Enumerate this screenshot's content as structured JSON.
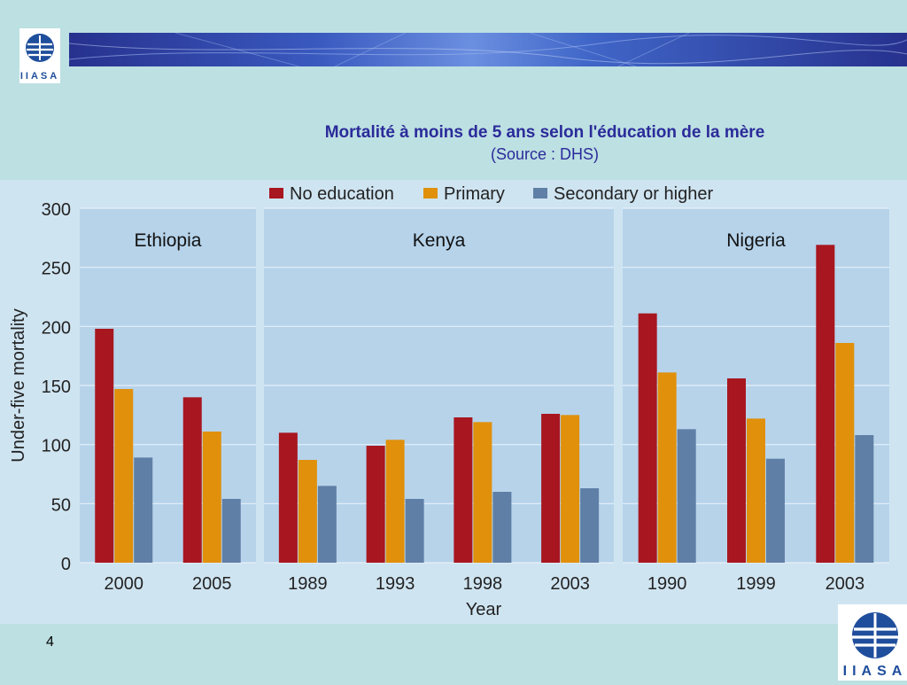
{
  "title": "Mortalité à moins de 5 ans selon l'éducation de la mère",
  "subtitle": "(Source : DHS)",
  "page_number": "4",
  "logo_text": "IIASA",
  "colors": {
    "background": "#bde0e2",
    "banner": "#27318e",
    "title": "#2b2b9a",
    "panel": "#b6d3ea",
    "chart_background": "#cfe4f1"
  },
  "chart_data": {
    "type": "bar",
    "ylabel": "Under-five mortality",
    "xlabel": "Year",
    "ylim": [
      0,
      300
    ],
    "yticks": [
      0,
      50,
      100,
      150,
      200,
      250,
      300
    ],
    "grid": true,
    "legend_position": "top",
    "series": [
      {
        "name": "No education",
        "color": "#a8161f"
      },
      {
        "name": "Primary",
        "color": "#e0900b"
      },
      {
        "name": "Secondary or higher",
        "color": "#5f7fa6"
      }
    ],
    "panels": [
      {
        "name": "Ethiopia",
        "categories": [
          "2000",
          "2005"
        ],
        "values": [
          [
            198,
            147,
            89
          ],
          [
            140,
            111,
            54
          ]
        ]
      },
      {
        "name": "Kenya",
        "categories": [
          "1989",
          "1993",
          "1998",
          "2003"
        ],
        "values": [
          [
            110,
            87,
            65
          ],
          [
            99,
            104,
            54
          ],
          [
            123,
            119,
            60
          ],
          [
            126,
            125,
            63
          ]
        ]
      },
      {
        "name": "Nigeria",
        "categories": [
          "1990",
          "1999",
          "2003"
        ],
        "values": [
          [
            211,
            161,
            113
          ],
          [
            156,
            122,
            88
          ],
          [
            269,
            186,
            108
          ]
        ]
      }
    ]
  }
}
